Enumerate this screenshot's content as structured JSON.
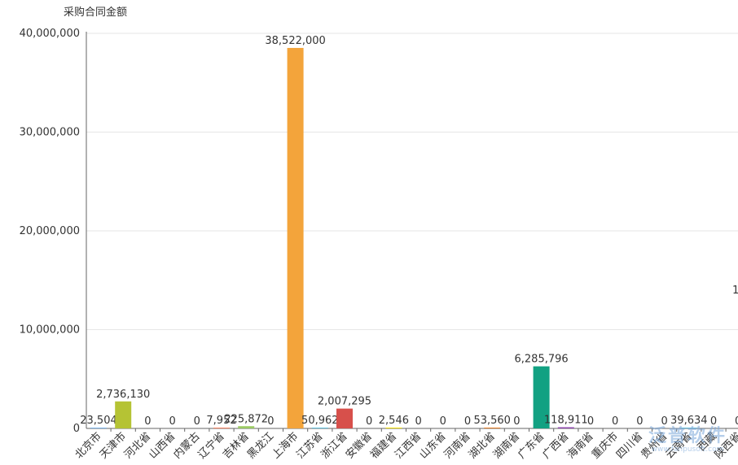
{
  "chart_data": {
    "type": "bar",
    "ylabel": "采购合同金额",
    "ylim": [
      0,
      40000000
    ],
    "yticks": [
      0,
      10000000,
      20000000,
      30000000,
      40000000
    ],
    "ytick_labels": [
      "0",
      "10,000,000",
      "20,000,000",
      "30,000,000",
      "40,000,000"
    ],
    "grid": true,
    "categories": [
      "北京市",
      "天津市",
      "河北省",
      "山西省",
      "内蒙古",
      "辽宁省",
      "吉林省",
      "黑龙江",
      "上海市",
      "江苏省",
      "浙江省",
      "安徽省",
      "福建省",
      "江西省",
      "山东省",
      "河南省",
      "湖北省",
      "湖南省",
      "广东省",
      "广西省",
      "海南省",
      "重庆市",
      "四川省",
      "贵州省",
      "云南省",
      "西藏",
      "陕西省"
    ],
    "values": [
      23504,
      2736130,
      0,
      0,
      0,
      7952,
      225872,
      0,
      38522000,
      50962,
      2007295,
      0,
      2546,
      0,
      0,
      0,
      53560,
      0,
      6285796,
      118911,
      0,
      0,
      0,
      0,
      39634,
      0,
      0
    ],
    "value_labels": [
      "23,504",
      "2,736,130",
      "0",
      "0",
      "0",
      "7,952",
      "225,872",
      "0",
      "38,522,000",
      "50,962",
      "2,007,295",
      "0",
      "2,546",
      "0",
      "0",
      "0",
      "53,560",
      "0",
      "6,285,796",
      "118,911",
      "0",
      "0",
      "0",
      "0",
      "39,634",
      "0",
      "0"
    ],
    "colors": [
      "#7cb5ec",
      "#b5c334",
      "#fcce10",
      "#e87c25",
      "#27727b",
      "#fe8463",
      "#9bca63",
      "#fad860",
      "#f3a43b",
      "#60c0dd",
      "#d7504b",
      "#c6e579",
      "#f4e001",
      "#f0805a",
      "#26c0c0",
      "#c1232b",
      "#e87c25",
      "#27727b",
      "#12a182",
      "#8e44ad",
      "#fe8463",
      "#9bca63",
      "#fad860",
      "#f3a43b",
      "#60c0dd",
      "#d7504b",
      "#c6e579"
    ]
  },
  "watermark": {
    "main": "泛普软件",
    "sub": "www.fanpusoft.com"
  },
  "edge_mark": "1"
}
